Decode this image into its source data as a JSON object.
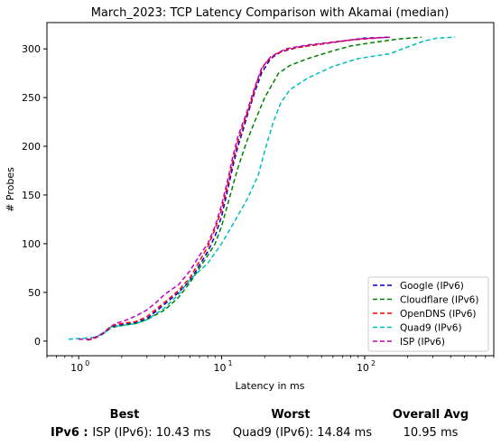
{
  "colors": {
    "Google (IPv6)": "#0000cc",
    "Cloudflare (IPv6)": "#008000",
    "OpenDNS (IPv6)": "#ff0000",
    "Quad9 (IPv6)": "#00bfbf",
    "ISP (IPv6)": "#bf00bf"
  },
  "chart_data": {
    "type": "line",
    "title": "March_2023: TCP Latency Comparison with Akamai (median)",
    "xlabel": "Latency in ms",
    "ylabel": "# Probes",
    "xscale": "log",
    "xlim": [
      0.6,
      800
    ],
    "ylim": [
      -15,
      327
    ],
    "xticks": [
      1,
      10,
      100
    ],
    "xtick_labels": [
      "10",
      "10",
      "10"
    ],
    "xtick_exponents": [
      "0",
      "1",
      "2"
    ],
    "yticks": [
      0,
      50,
      100,
      150,
      200,
      250,
      300
    ],
    "ytick_labels": [
      "0",
      "50",
      "100",
      "150",
      "200",
      "250",
      "300"
    ],
    "grid": false,
    "legend_position": "lower right",
    "line_style": "dashed",
    "series": [
      {
        "name": "Google (IPv6)",
        "points": [
          [
            1.15,
            1
          ],
          [
            1.3,
            3
          ],
          [
            1.5,
            8
          ],
          [
            1.7,
            15
          ],
          [
            2.0,
            17
          ],
          [
            2.5,
            19
          ],
          [
            3.0,
            23
          ],
          [
            4.0,
            38
          ],
          [
            5.0,
            50
          ],
          [
            6.0,
            62
          ],
          [
            7.0,
            78
          ],
          [
            8.0,
            92
          ],
          [
            9.0,
            108
          ],
          [
            10.0,
            128
          ],
          [
            11.0,
            155
          ],
          [
            12.0,
            180
          ],
          [
            13.0,
            200
          ],
          [
            14.0,
            215
          ],
          [
            15.0,
            230
          ],
          [
            17.0,
            255
          ],
          [
            19.0,
            275
          ],
          [
            22.0,
            290
          ],
          [
            26.0,
            297
          ],
          [
            35.0,
            302
          ],
          [
            50.0,
            305
          ],
          [
            70.0,
            308
          ],
          [
            100.0,
            311
          ],
          [
            150.0,
            312
          ]
        ]
      },
      {
        "name": "Cloudflare (IPv6)",
        "points": [
          [
            1.15,
            1
          ],
          [
            1.3,
            3
          ],
          [
            1.5,
            8
          ],
          [
            1.7,
            14
          ],
          [
            2.0,
            16
          ],
          [
            2.5,
            18
          ],
          [
            3.0,
            22
          ],
          [
            4.0,
            32
          ],
          [
            5.0,
            45
          ],
          [
            6.0,
            60
          ],
          [
            7.0,
            75
          ],
          [
            8.0,
            88
          ],
          [
            9.0,
            100
          ],
          [
            10.0,
            118
          ],
          [
            11.0,
            140
          ],
          [
            12.0,
            160
          ],
          [
            13.0,
            178
          ],
          [
            15.0,
            205
          ],
          [
            17.0,
            225
          ],
          [
            20.0,
            250
          ],
          [
            25.0,
            275
          ],
          [
            30.0,
            283
          ],
          [
            40.0,
            290
          ],
          [
            60.0,
            298
          ],
          [
            80.0,
            303
          ],
          [
            120.0,
            307
          ],
          [
            170.0,
            310
          ],
          [
            250.0,
            312
          ]
        ]
      },
      {
        "name": "OpenDNS (IPv6)",
        "points": [
          [
            1.15,
            1
          ],
          [
            1.3,
            3
          ],
          [
            1.5,
            9
          ],
          [
            1.7,
            16
          ],
          [
            2.0,
            18
          ],
          [
            2.5,
            20
          ],
          [
            3.0,
            25
          ],
          [
            4.0,
            40
          ],
          [
            5.0,
            52
          ],
          [
            6.0,
            65
          ],
          [
            7.0,
            82
          ],
          [
            8.0,
            97
          ],
          [
            9.0,
            115
          ],
          [
            10.0,
            135
          ],
          [
            11.0,
            160
          ],
          [
            12.0,
            185
          ],
          [
            13.0,
            205
          ],
          [
            14.0,
            220
          ],
          [
            16.0,
            245
          ],
          [
            18.0,
            270
          ],
          [
            20.0,
            285
          ],
          [
            24.0,
            295
          ],
          [
            30.0,
            300
          ],
          [
            50.0,
            305
          ],
          [
            80.0,
            309
          ],
          [
            140.0,
            312
          ]
        ]
      },
      {
        "name": "Quad9 (IPv6)",
        "points": [
          [
            0.85,
            2
          ],
          [
            1.1,
            3
          ],
          [
            1.3,
            4
          ],
          [
            1.5,
            8
          ],
          [
            1.7,
            15
          ],
          [
            2.0,
            16
          ],
          [
            2.5,
            18
          ],
          [
            3.0,
            22
          ],
          [
            4.0,
            34
          ],
          [
            5.0,
            48
          ],
          [
            6.0,
            63
          ],
          [
            8.0,
            80
          ],
          [
            10.0,
            100
          ],
          [
            12.0,
            120
          ],
          [
            15.0,
            145
          ],
          [
            18.0,
            170
          ],
          [
            20.0,
            195
          ],
          [
            23.0,
            225
          ],
          [
            26.0,
            245
          ],
          [
            30.0,
            258
          ],
          [
            40.0,
            270
          ],
          [
            60.0,
            282
          ],
          [
            90.0,
            290
          ],
          [
            150.0,
            295
          ],
          [
            200.0,
            302
          ],
          [
            260.0,
            308
          ],
          [
            320.0,
            311
          ],
          [
            430.0,
            312
          ]
        ]
      },
      {
        "name": "ISP (IPv6)",
        "points": [
          [
            1.0,
            2
          ],
          [
            1.2,
            2
          ],
          [
            1.4,
            6
          ],
          [
            1.6,
            12
          ],
          [
            1.8,
            18
          ],
          [
            2.2,
            22
          ],
          [
            2.6,
            27
          ],
          [
            3.0,
            32
          ],
          [
            3.5,
            40
          ],
          [
            4.0,
            48
          ],
          [
            5.0,
            58
          ],
          [
            6.0,
            72
          ],
          [
            7.0,
            88
          ],
          [
            8.0,
            100
          ],
          [
            9.0,
            118
          ],
          [
            10.0,
            140
          ],
          [
            11.0,
            165
          ],
          [
            12.0,
            190
          ],
          [
            13.0,
            210
          ],
          [
            15.0,
            235
          ],
          [
            17.0,
            260
          ],
          [
            19.0,
            280
          ],
          [
            22.0,
            292
          ],
          [
            28.0,
            300
          ],
          [
            40.0,
            304
          ],
          [
            60.0,
            307
          ],
          [
            90.0,
            310
          ],
          [
            150.0,
            312
          ]
        ]
      }
    ]
  },
  "summary": {
    "best_header": "Best",
    "worst_header": "Worst",
    "avg_header": "Overall Avg",
    "row_label": "IPv6 :",
    "best_value": "ISP (IPv6): 10.43 ms",
    "worst_value": "Quad9 (IPv6): 14.84 ms",
    "avg_value": "10.95 ms"
  }
}
